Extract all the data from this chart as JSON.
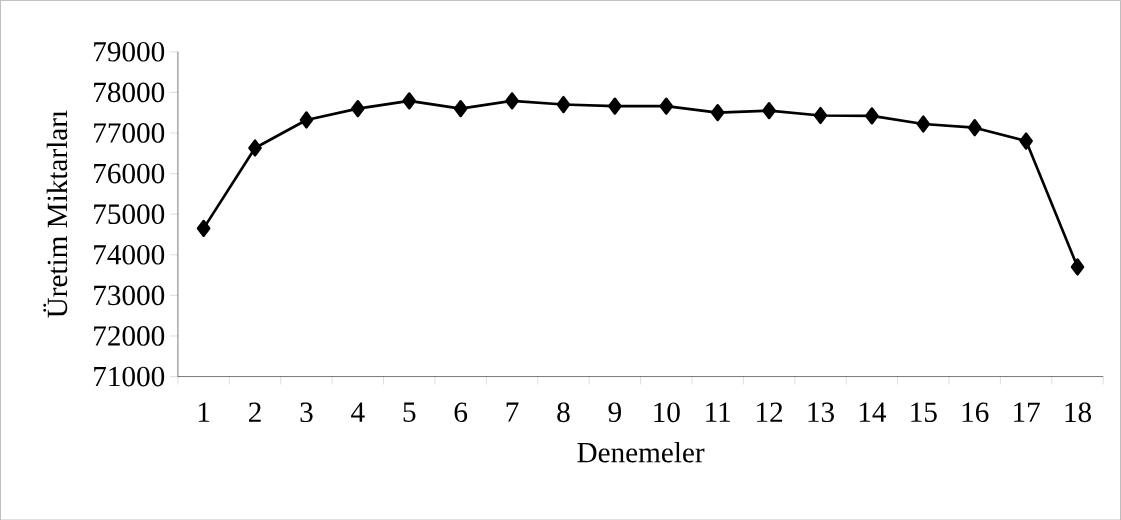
{
  "chart_data": {
    "type": "line",
    "xlabel": "Denemeler",
    "ylabel": "Üretim Miktarları",
    "categories": [
      "1",
      "2",
      "3",
      "4",
      "5",
      "6",
      "7",
      "8",
      "9",
      "10",
      "11",
      "12",
      "13",
      "14",
      "15",
      "16",
      "17",
      "18"
    ],
    "series": [
      {
        "color": "#000000",
        "values": [
          74650,
          76630,
          77320,
          77600,
          77790,
          77600,
          77790,
          77700,
          77660,
          77660,
          77500,
          77550,
          77430,
          77420,
          77220,
          77130,
          76800,
          73700
        ]
      }
    ],
    "ylim": [
      71000,
      79000
    ],
    "yticks": [
      71000,
      72000,
      73000,
      74000,
      75000,
      76000,
      77000,
      78000,
      79000
    ],
    "marker": "diamond",
    "line_style": "solid",
    "grid": false
  }
}
